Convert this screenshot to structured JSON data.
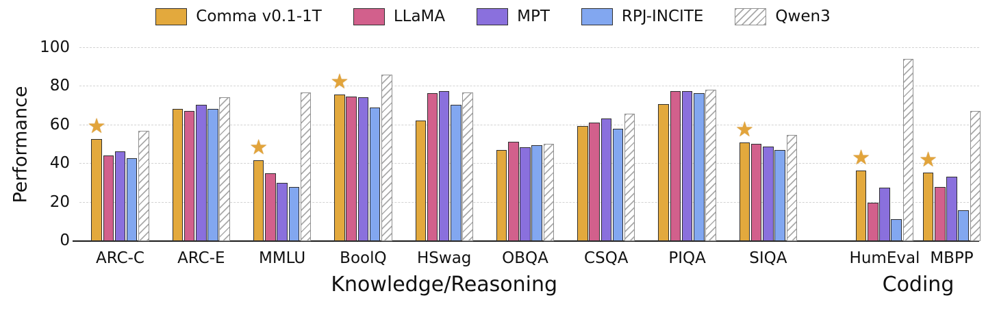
{
  "chart_data": {
    "type": "bar",
    "title": "",
    "ylabel": "Performance",
    "ylim": [
      0,
      100
    ],
    "yticks": [
      0,
      20,
      40,
      60,
      80,
      100
    ],
    "grid": "horizontal-dashed",
    "legend_position": "top",
    "categories": [
      "ARC-C",
      "ARC-E",
      "MMLU",
      "BoolQ",
      "HSwag",
      "OBQA",
      "CSQA",
      "PIQA",
      "SIQA",
      "HumEval",
      "MBPP"
    ],
    "groups": [
      {
        "label": "Knowledge/Reasoning",
        "categories": [
          "ARC-C",
          "ARC-E",
          "MMLU",
          "BoolQ",
          "HSwag",
          "OBQA",
          "CSQA",
          "PIQA",
          "SIQA"
        ]
      },
      {
        "label": "Coding",
        "categories": [
          "HumEval",
          "MBPP"
        ]
      }
    ],
    "series": [
      {
        "name": "Comma v0.1-1T",
        "color": "#E3A93D",
        "hatch": false,
        "values": [
          53,
          68.5,
          42,
          76,
          62.5,
          47,
          59.5,
          71,
          51,
          36.5,
          35.5
        ]
      },
      {
        "name": "LLaMA",
        "color": "#D2608C",
        "hatch": false,
        "values": [
          44.5,
          67.5,
          35,
          75,
          76.5,
          51.5,
          61.5,
          77.5,
          50.5,
          20,
          28
        ]
      },
      {
        "name": "MPT",
        "color": "#8A70DD",
        "hatch": false,
        "values": [
          46.5,
          70.5,
          30,
          74.5,
          77.5,
          48.5,
          63.5,
          77.5,
          49,
          27.5,
          33.5
        ]
      },
      {
        "name": "RPJ-INCITE",
        "color": "#82A7F0",
        "hatch": false,
        "values": [
          43,
          68.5,
          28,
          69,
          70.5,
          49.5,
          58,
          76.5,
          47,
          11.5,
          16
        ]
      },
      {
        "name": "Qwen3",
        "color": "#FFFFFF",
        "hatch": true,
        "values": [
          57,
          74.5,
          77,
          86,
          77,
          50.5,
          66,
          78.5,
          55,
          94.5,
          67.5
        ]
      }
    ],
    "starred_categories": [
      "ARC-C",
      "MMLU",
      "BoolQ",
      "SIQA",
      "HumEval",
      "MBPP"
    ],
    "star_color": "#E2A43B",
    "colors": {
      "bar_edge": "#2f2f2f",
      "hatch_edge": "#8f8f8f",
      "grid": "#d2d2d2",
      "axis": "#1a1a1a"
    }
  }
}
